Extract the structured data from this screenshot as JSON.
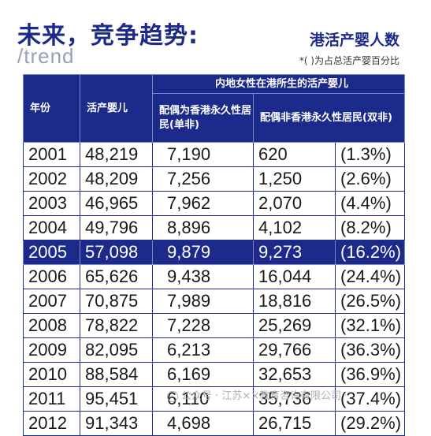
{
  "headline": "未来，竞争趋势:",
  "subhead": "/trend",
  "table_title": "港活产婴人数",
  "table_note": "*(  )为占总活产婴百分比",
  "headers": {
    "year": "年份",
    "live_births": "活产婴儿",
    "group": "内地女性在港所生的活产婴儿",
    "single": "配偶为香港永久性居民(单非)",
    "double": "配偶非香港永久性居民(双非)"
  },
  "rows": [
    {
      "year": "2001",
      "births": "48,219",
      "single": "7,190",
      "double": "620",
      "pct": "(1.3%)"
    },
    {
      "year": "2002",
      "births": "48,209",
      "single": "7,256",
      "double": "1,250",
      "pct": "(2.6%)"
    },
    {
      "year": "2003",
      "births": "46,965",
      "single": "7,962",
      "double": "2,070",
      "pct": "(4.4%)"
    },
    {
      "year": "2004",
      "births": "49,796",
      "single": "8,896",
      "double": "4,102",
      "pct": "(8.2%)"
    },
    {
      "year": "2005",
      "births": "57,098",
      "single": "9,879",
      "double": "9,273",
      "pct": "(16.2%)"
    },
    {
      "year": "2006",
      "births": "65,626",
      "single": "9,438",
      "double": "16,044",
      "pct": "(24.4%)"
    },
    {
      "year": "2007",
      "births": "70,875",
      "single": "7,989",
      "double": "18,816",
      "pct": "(26.5%)"
    },
    {
      "year": "2008",
      "births": "78,822",
      "single": "7,228",
      "double": "25,269",
      "pct": "(32.1%)"
    },
    {
      "year": "2009",
      "births": "82,095",
      "single": "6,213",
      "double": "29,766",
      "pct": "(36.3%)"
    },
    {
      "year": "2010",
      "births": "88,584",
      "single": "6,169",
      "double": "32,653",
      "pct": "(36.9%)"
    },
    {
      "year": "2011",
      "births": "95,451",
      "single": "6,110",
      "double": "35,736",
      "pct": "(37.4%)"
    },
    {
      "year": "2012",
      "births": "91,343",
      "single": "4,698",
      "double": "26,715",
      "pct": "(29.2%)"
    }
  ],
  "highlight_row": 4,
  "watermark": "公众号 · 江苏××教育咨询有限公司",
  "colors": {
    "accent": "#1c2a8c",
    "muted": "#9aa0b6"
  }
}
